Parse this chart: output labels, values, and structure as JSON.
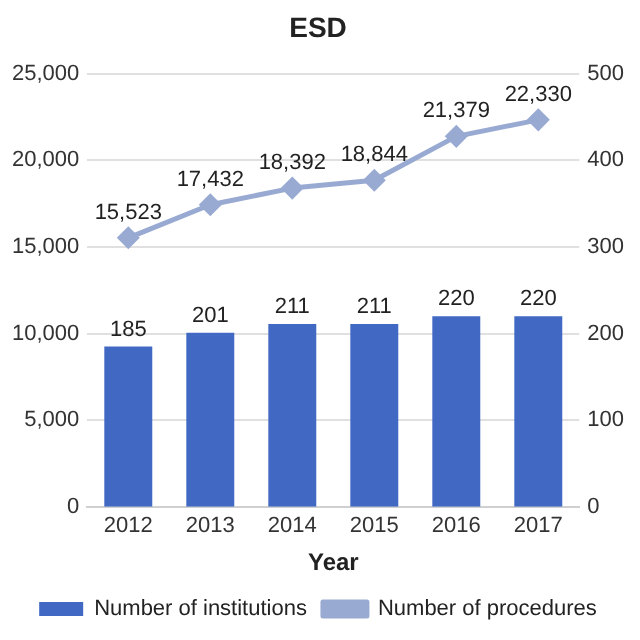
{
  "chart_data": {
    "type": "bar",
    "title": "ESD",
    "xlabel": "Year",
    "categories": [
      "2012",
      "2013",
      "2014",
      "2015",
      "2016",
      "2017"
    ],
    "series": [
      {
        "name": "Number of institutions",
        "axis": "y2",
        "color": "#4169c4",
        "values": [
          185,
          201,
          211,
          211,
          220,
          220
        ],
        "value_labels": [
          "185",
          "201",
          "211",
          "211",
          "220",
          "220"
        ]
      },
      {
        "name": "Number of procedures",
        "type": "line",
        "axis": "y",
        "color": "#99aad2",
        "marker": "diamond",
        "values": [
          15523,
          17432,
          18392,
          18844,
          21379,
          22330
        ],
        "value_labels": [
          "15,523",
          "17,432",
          "18,392",
          "18,844",
          "21,379",
          "22,330"
        ]
      }
    ],
    "ylim": [
      0,
      25000
    ],
    "yticks": [
      0,
      {
        "value": 5000,
        "label": "5,000"
      },
      {
        "value": 10000,
        "label": "10,000"
      },
      {
        "value": 15000,
        "label": "15,000"
      },
      {
        "value": 20000,
        "label": "20,000"
      },
      {
        "value": 25000,
        "label": "25,000"
      }
    ],
    "y2lim": [
      0,
      500
    ],
    "y2ticks": [
      0,
      100,
      200,
      300,
      400,
      500
    ],
    "grid": "y",
    "legend": "bottom"
  }
}
